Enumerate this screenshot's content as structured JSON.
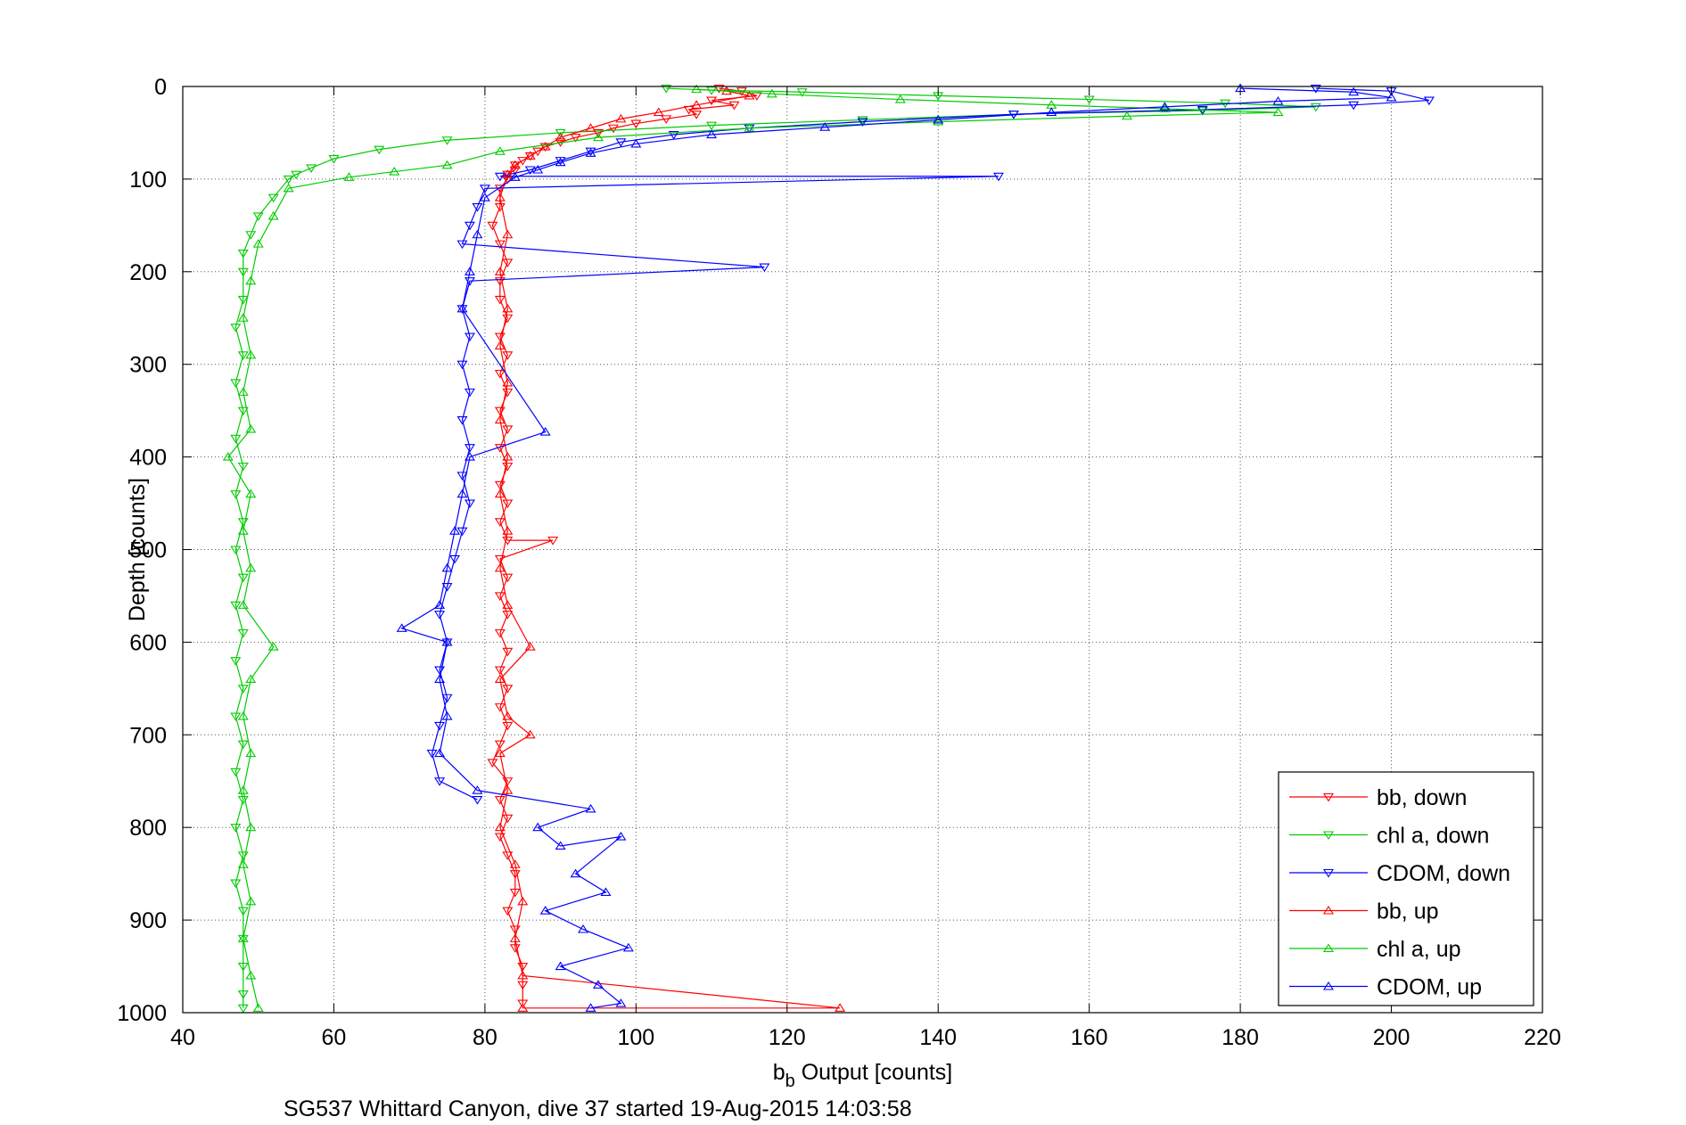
{
  "chart_data": {
    "type": "scatter",
    "xlabel_main": "b",
    "xlabel_sub": "b",
    "xlabel_rest": " Output [counts]",
    "ylabel": "Depth [counts]",
    "caption": "SG537 Whittard Canyon, dive 37 started 19-Aug-2015 14:03:58",
    "xlim": [
      40,
      220
    ],
    "ylim": [
      0,
      1000
    ],
    "y_reversed": true,
    "grid": true,
    "legend_position": "bottom-right",
    "x_ticks": [
      "40",
      "60",
      "80",
      "100",
      "120",
      "140",
      "160",
      "180",
      "200",
      "220"
    ],
    "y_ticks": [
      "0",
      "100",
      "200",
      "300",
      "400",
      "500",
      "600",
      "700",
      "800",
      "900",
      "1000"
    ],
    "series": [
      {
        "name": "bb, down",
        "color": "#ff0000",
        "marker": "triangle-down",
        "points": [
          [
            111,
            2
          ],
          [
            114,
            5
          ],
          [
            116,
            10
          ],
          [
            110,
            15
          ],
          [
            113,
            20
          ],
          [
            107,
            25
          ],
          [
            108,
            30
          ],
          [
            104,
            35
          ],
          [
            100,
            40
          ],
          [
            97,
            45
          ],
          [
            95,
            50
          ],
          [
            92,
            55
          ],
          [
            90,
            60
          ],
          [
            88,
            65
          ],
          [
            87,
            70
          ],
          [
            86,
            75
          ],
          [
            85,
            80
          ],
          [
            84,
            85
          ],
          [
            84,
            90
          ],
          [
            83,
            95
          ],
          [
            83,
            100
          ],
          [
            82,
            110
          ],
          [
            82,
            130
          ],
          [
            81,
            150
          ],
          [
            82,
            170
          ],
          [
            83,
            190
          ],
          [
            82,
            210
          ],
          [
            82,
            230
          ],
          [
            83,
            250
          ],
          [
            82,
            270
          ],
          [
            83,
            290
          ],
          [
            82,
            310
          ],
          [
            83,
            330
          ],
          [
            82,
            350
          ],
          [
            83,
            370
          ],
          [
            82,
            390
          ],
          [
            83,
            410
          ],
          [
            82,
            430
          ],
          [
            83,
            450
          ],
          [
            82,
            470
          ],
          [
            83,
            490
          ],
          [
            89,
            490
          ],
          [
            82,
            510
          ],
          [
            83,
            530
          ],
          [
            82,
            550
          ],
          [
            83,
            570
          ],
          [
            82,
            590
          ],
          [
            83,
            610
          ],
          [
            82,
            630
          ],
          [
            83,
            650
          ],
          [
            82,
            670
          ],
          [
            83,
            690
          ],
          [
            82,
            710
          ],
          [
            81,
            730
          ],
          [
            83,
            750
          ],
          [
            82,
            770
          ],
          [
            83,
            790
          ],
          [
            82,
            810
          ],
          [
            83,
            830
          ],
          [
            84,
            850
          ],
          [
            84,
            870
          ],
          [
            83,
            890
          ],
          [
            84,
            910
          ],
          [
            84,
            930
          ],
          [
            85,
            950
          ],
          [
            85,
            970
          ],
          [
            85,
            990
          ]
        ]
      },
      {
        "name": "chl a, down",
        "color": "#00cc00",
        "marker": "triangle-down",
        "points": [
          [
            104,
            2
          ],
          [
            110,
            4
          ],
          [
            122,
            6
          ],
          [
            140,
            10
          ],
          [
            160,
            14
          ],
          [
            178,
            18
          ],
          [
            190,
            22
          ],
          [
            175,
            26
          ],
          [
            150,
            30
          ],
          [
            130,
            36
          ],
          [
            110,
            42
          ],
          [
            90,
            50
          ],
          [
            75,
            58
          ],
          [
            66,
            68
          ],
          [
            60,
            78
          ],
          [
            57,
            88
          ],
          [
            55,
            95
          ],
          [
            54,
            100
          ],
          [
            52,
            120
          ],
          [
            50,
            140
          ],
          [
            49,
            160
          ],
          [
            48,
            180
          ],
          [
            48,
            200
          ],
          [
            48,
            230
          ],
          [
            47,
            260
          ],
          [
            48,
            290
          ],
          [
            47,
            320
          ],
          [
            48,
            350
          ],
          [
            47,
            380
          ],
          [
            48,
            410
          ],
          [
            47,
            440
          ],
          [
            48,
            470
          ],
          [
            47,
            500
          ],
          [
            48,
            530
          ],
          [
            47,
            560
          ],
          [
            48,
            590
          ],
          [
            47,
            620
          ],
          [
            48,
            650
          ],
          [
            47,
            680
          ],
          [
            48,
            710
          ],
          [
            47,
            740
          ],
          [
            48,
            770
          ],
          [
            47,
            800
          ],
          [
            48,
            830
          ],
          [
            47,
            860
          ],
          [
            48,
            890
          ],
          [
            48,
            920
          ],
          [
            48,
            950
          ],
          [
            48,
            980
          ],
          [
            48,
            995
          ]
        ]
      },
      {
        "name": "CDOM, down",
        "color": "#0000ff",
        "marker": "triangle-down",
        "points": [
          [
            190,
            2
          ],
          [
            200,
            5
          ],
          [
            205,
            15
          ],
          [
            195,
            20
          ],
          [
            175,
            25
          ],
          [
            150,
            30
          ],
          [
            130,
            38
          ],
          [
            115,
            45
          ],
          [
            105,
            52
          ],
          [
            98,
            60
          ],
          [
            94,
            70
          ],
          [
            90,
            80
          ],
          [
            86,
            90
          ],
          [
            82,
            97
          ],
          [
            148,
            97
          ],
          [
            80,
            110
          ],
          [
            79,
            130
          ],
          [
            78,
            150
          ],
          [
            77,
            170
          ],
          [
            117,
            195
          ],
          [
            78,
            210
          ],
          [
            77,
            240
          ],
          [
            78,
            270
          ],
          [
            77,
            300
          ],
          [
            78,
            330
          ],
          [
            77,
            360
          ],
          [
            78,
            390
          ],
          [
            77,
            420
          ],
          [
            78,
            450
          ],
          [
            77,
            480
          ],
          [
            76,
            510
          ],
          [
            75,
            540
          ],
          [
            74,
            570
          ],
          [
            75,
            600
          ],
          [
            74,
            630
          ],
          [
            75,
            660
          ],
          [
            74,
            690
          ],
          [
            73,
            720
          ],
          [
            74,
            750
          ],
          [
            79,
            770
          ]
        ]
      },
      {
        "name": "bb, up",
        "color": "#ff0000",
        "marker": "triangle-up",
        "points": [
          [
            112,
            5
          ],
          [
            115,
            10
          ],
          [
            108,
            20
          ],
          [
            103,
            28
          ],
          [
            98,
            35
          ],
          [
            94,
            45
          ],
          [
            90,
            55
          ],
          [
            88,
            65
          ],
          [
            86,
            75
          ],
          [
            84,
            85
          ],
          [
            83,
            95
          ],
          [
            82,
            120
          ],
          [
            83,
            160
          ],
          [
            82,
            200
          ],
          [
            83,
            240
          ],
          [
            82,
            280
          ],
          [
            83,
            320
          ],
          [
            82,
            360
          ],
          [
            83,
            400
          ],
          [
            82,
            440
          ],
          [
            83,
            480
          ],
          [
            82,
            520
          ],
          [
            83,
            560
          ],
          [
            86,
            605
          ],
          [
            82,
            640
          ],
          [
            83,
            680
          ],
          [
            86,
            700
          ],
          [
            82,
            720
          ],
          [
            83,
            760
          ],
          [
            82,
            800
          ],
          [
            84,
            840
          ],
          [
            85,
            880
          ],
          [
            84,
            920
          ],
          [
            85,
            960
          ],
          [
            127,
            995
          ],
          [
            85,
            995
          ]
        ]
      },
      {
        "name": "chl a, up",
        "color": "#00cc00",
        "marker": "triangle-up",
        "points": [
          [
            108,
            3
          ],
          [
            118,
            8
          ],
          [
            135,
            14
          ],
          [
            155,
            20
          ],
          [
            170,
            24
          ],
          [
            185,
            28
          ],
          [
            165,
            32
          ],
          [
            140,
            38
          ],
          [
            115,
            45
          ],
          [
            95,
            55
          ],
          [
            82,
            70
          ],
          [
            75,
            85
          ],
          [
            68,
            92
          ],
          [
            62,
            98
          ],
          [
            54,
            110
          ],
          [
            52,
            140
          ],
          [
            50,
            170
          ],
          [
            49,
            210
          ],
          [
            48,
            250
          ],
          [
            49,
            290
          ],
          [
            48,
            330
          ],
          [
            49,
            370
          ],
          [
            46,
            400
          ],
          [
            49,
            440
          ],
          [
            48,
            480
          ],
          [
            49,
            520
          ],
          [
            48,
            560
          ],
          [
            52,
            605
          ],
          [
            49,
            640
          ],
          [
            48,
            680
          ],
          [
            49,
            720
          ],
          [
            48,
            760
          ],
          [
            49,
            800
          ],
          [
            48,
            840
          ],
          [
            49,
            880
          ],
          [
            48,
            920
          ],
          [
            49,
            960
          ],
          [
            50,
            995
          ]
        ]
      },
      {
        "name": "CDOM, up",
        "color": "#0000ff",
        "marker": "triangle-up",
        "points": [
          [
            180,
            2
          ],
          [
            195,
            6
          ],
          [
            200,
            12
          ],
          [
            185,
            16
          ],
          [
            170,
            22
          ],
          [
            155,
            28
          ],
          [
            140,
            36
          ],
          [
            125,
            44
          ],
          [
            110,
            52
          ],
          [
            100,
            62
          ],
          [
            94,
            72
          ],
          [
            90,
            82
          ],
          [
            87,
            90
          ],
          [
            84,
            98
          ],
          [
            80,
            120
          ],
          [
            79,
            160
          ],
          [
            78,
            200
          ],
          [
            77,
            240
          ],
          [
            88,
            373
          ],
          [
            78,
            400
          ],
          [
            77,
            440
          ],
          [
            76,
            480
          ],
          [
            75,
            520
          ],
          [
            74,
            560
          ],
          [
            69,
            585
          ],
          [
            75,
            600
          ],
          [
            74,
            640
          ],
          [
            75,
            680
          ],
          [
            74,
            720
          ],
          [
            79,
            760
          ],
          [
            94,
            780
          ],
          [
            87,
            800
          ],
          [
            90,
            820
          ],
          [
            98,
            810
          ],
          [
            92,
            850
          ],
          [
            96,
            870
          ],
          [
            88,
            890
          ],
          [
            93,
            910
          ],
          [
            99,
            930
          ],
          [
            90,
            950
          ],
          [
            95,
            970
          ],
          [
            98,
            990
          ],
          [
            94,
            995
          ]
        ]
      }
    ]
  }
}
